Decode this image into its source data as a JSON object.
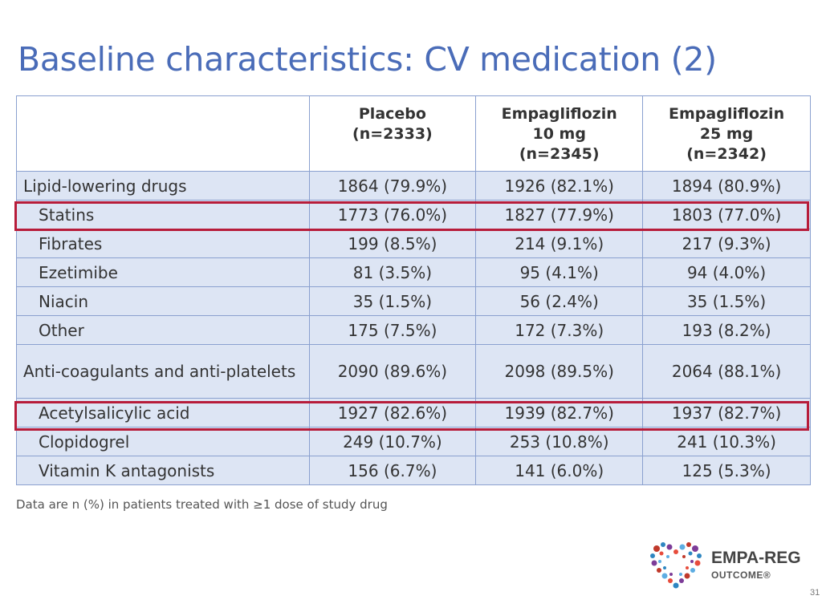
{
  "slide": {
    "title": "Baseline characteristics: CV medication (2)",
    "footnote": "Data are n (%) in patients treated with ≥1 dose of study drug",
    "page_number": "31"
  },
  "table": {
    "header": {
      "col1": "",
      "col2": [
        "Placebo",
        "(n=2333)"
      ],
      "col3": [
        "Empagliflozin",
        "10 mg",
        "(n=2345)"
      ],
      "col4": [
        "Empagliflozin",
        "25 mg",
        "(n=2342)"
      ]
    },
    "rows": [
      {
        "label": "Lipid-lowering drugs",
        "indent": false,
        "values": [
          "1864 (79.9%)",
          "1926 (82.1%)",
          "1894 (80.9%)"
        ]
      },
      {
        "label": "Statins",
        "indent": true,
        "values": [
          "1773 (76.0%)",
          "1827 (77.9%)",
          "1803 (77.0%)"
        ]
      },
      {
        "label": "Fibrates",
        "indent": true,
        "values": [
          "199 (8.5%)",
          "214 (9.1%)",
          "217 (9.3%)"
        ]
      },
      {
        "label": "Ezetimibe",
        "indent": true,
        "values": [
          "81 (3.5%)",
          "95 (4.1%)",
          "94 (4.0%)"
        ]
      },
      {
        "label": "Niacin",
        "indent": true,
        "values": [
          "35 (1.5%)",
          "56 (2.4%)",
          "35 (1.5%)"
        ]
      },
      {
        "label": "Other",
        "indent": true,
        "values": [
          "175 (7.5%)",
          "172 (7.3%)",
          "193 (8.2%)"
        ]
      },
      {
        "label": "Anti-coagulants and anti-platelets",
        "indent": false,
        "values": [
          "2090 (89.6%)",
          "2098 (89.5%)",
          "2064 (88.1%)"
        ]
      },
      {
        "label": "Acetylsalicylic acid",
        "indent": true,
        "values": [
          "1927 (82.6%)",
          "1939 (82.7%)",
          "1937 (82.7%)"
        ]
      },
      {
        "label": "Clopidogrel",
        "indent": true,
        "values": [
          "249 (10.7%)",
          "253 (10.8%)",
          "241 (10.3%)"
        ]
      },
      {
        "label": "Vitamin K antagonists",
        "indent": true,
        "values": [
          "156 (6.7%)",
          "141 (6.0%)",
          "125 (5.3%)"
        ]
      }
    ]
  },
  "highlight_color": "#b71c3a",
  "logo": {
    "line1": "EMPA-REG",
    "line2": "OUTCOME®",
    "colors": [
      "#c0392b",
      "#2e86c1",
      "#7d3c98",
      "#e74c3c",
      "#5dade2"
    ]
  }
}
